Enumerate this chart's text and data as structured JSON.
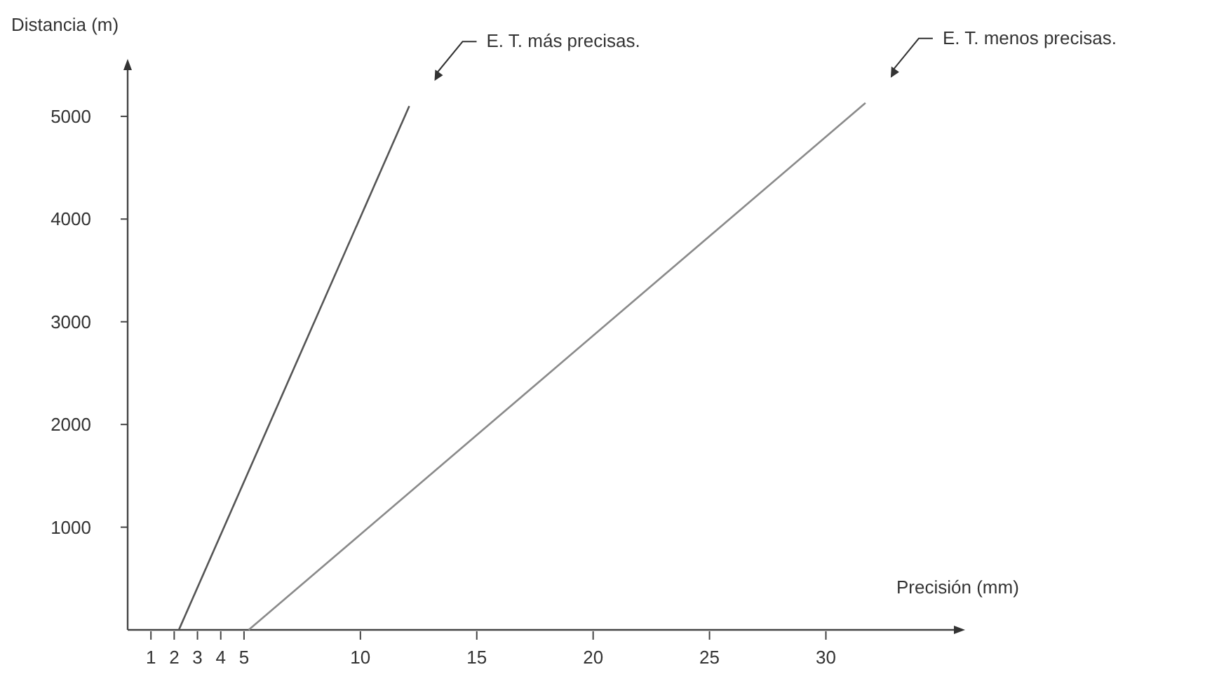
{
  "chart_data": {
    "type": "line",
    "xlabel": "Precisión (mm)",
    "ylabel": "Distancia (m)",
    "xlim": [
      0,
      35.5
    ],
    "ylim": [
      0,
      5450
    ],
    "xticks": [
      1,
      2,
      3,
      4,
      5,
      10,
      15,
      20,
      25,
      30
    ],
    "yticks": [
      1000,
      2000,
      3000,
      4000,
      5000
    ],
    "grid": false,
    "marker": "none",
    "line_style": "solid",
    "series": [
      {
        "color": "#555555",
        "x": [
          2.2,
          12.1
        ],
        "values": [
          0,
          5100
        ]
      },
      {
        "color": "#8a8a8a",
        "x": [
          5.2,
          31.7
        ],
        "values": [
          0,
          5130
        ]
      }
    ],
    "annotations": [
      "E. T. más precisas.",
      "E. T. menos precisas."
    ]
  }
}
